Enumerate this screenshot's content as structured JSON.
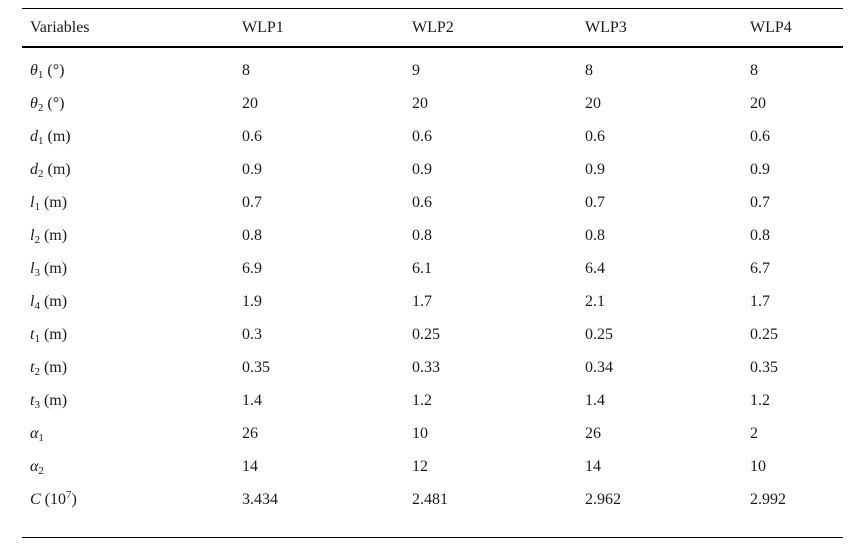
{
  "table": {
    "columns": [
      "Variables",
      "WLP1",
      "WLP2",
      "WLP3",
      "WLP4"
    ],
    "rows": [
      {
        "label": [
          {
            "t": "i",
            "v": "θ"
          },
          {
            "t": "sub",
            "v": "1"
          },
          {
            "t": "n",
            "v": " (°)"
          }
        ],
        "values": [
          "8",
          "9",
          "8",
          "8"
        ]
      },
      {
        "label": [
          {
            "t": "i",
            "v": "θ"
          },
          {
            "t": "sub",
            "v": "2"
          },
          {
            "t": "n",
            "v": " (°)"
          }
        ],
        "values": [
          "20",
          "20",
          "20",
          "20"
        ]
      },
      {
        "label": [
          {
            "t": "i",
            "v": "d"
          },
          {
            "t": "sub",
            "v": "1"
          },
          {
            "t": "n",
            "v": " (m)"
          }
        ],
        "values": [
          "0.6",
          "0.6",
          "0.6",
          "0.6"
        ]
      },
      {
        "label": [
          {
            "t": "i",
            "v": "d"
          },
          {
            "t": "sub",
            "v": "2"
          },
          {
            "t": "n",
            "v": " (m)"
          }
        ],
        "values": [
          "0.9",
          "0.9",
          "0.9",
          "0.9"
        ]
      },
      {
        "label": [
          {
            "t": "i",
            "v": "l"
          },
          {
            "t": "sub",
            "v": "1"
          },
          {
            "t": "n",
            "v": " (m)"
          }
        ],
        "values": [
          "0.7",
          "0.6",
          "0.7",
          "0.7"
        ]
      },
      {
        "label": [
          {
            "t": "i",
            "v": "l"
          },
          {
            "t": "sub",
            "v": "2"
          },
          {
            "t": "n",
            "v": " (m)"
          }
        ],
        "values": [
          "0.8",
          "0.8",
          "0.8",
          "0.8"
        ]
      },
      {
        "label": [
          {
            "t": "i",
            "v": "l"
          },
          {
            "t": "sub",
            "v": "3"
          },
          {
            "t": "n",
            "v": " (m)"
          }
        ],
        "values": [
          "6.9",
          "6.1",
          "6.4",
          "6.7"
        ]
      },
      {
        "label": [
          {
            "t": "i",
            "v": "l"
          },
          {
            "t": "sub",
            "v": "4"
          },
          {
            "t": "n",
            "v": " (m)"
          }
        ],
        "values": [
          "1.9",
          "1.7",
          "2.1",
          "1.7"
        ]
      },
      {
        "label": [
          {
            "t": "i",
            "v": "t"
          },
          {
            "t": "sub",
            "v": "1"
          },
          {
            "t": "n",
            "v": " (m)"
          }
        ],
        "values": [
          "0.3",
          "0.25",
          "0.25",
          "0.25"
        ]
      },
      {
        "label": [
          {
            "t": "i",
            "v": "t"
          },
          {
            "t": "sub",
            "v": "2"
          },
          {
            "t": "n",
            "v": " (m)"
          }
        ],
        "values": [
          "0.35",
          "0.33",
          "0.34",
          "0.35"
        ]
      },
      {
        "label": [
          {
            "t": "i",
            "v": "t"
          },
          {
            "t": "sub",
            "v": "3"
          },
          {
            "t": "n",
            "v": " (m)"
          }
        ],
        "values": [
          "1.4",
          "1.2",
          "1.4",
          "1.2"
        ]
      },
      {
        "label": [
          {
            "t": "i",
            "v": "α"
          },
          {
            "t": "sub",
            "v": "1"
          }
        ],
        "values": [
          "26",
          "10",
          "26",
          "2"
        ]
      },
      {
        "label": [
          {
            "t": "i",
            "v": "α"
          },
          {
            "t": "sub",
            "v": "2"
          }
        ],
        "values": [
          "14",
          "12",
          "14",
          "10"
        ]
      },
      {
        "label": [
          {
            "t": "i",
            "v": "C"
          },
          {
            "t": "n",
            "v": " (10"
          },
          {
            "t": "sup",
            "v": "7"
          },
          {
            "t": "n",
            "v": ")"
          }
        ],
        "values": [
          "3.434",
          "2.481",
          "2.962",
          "2.992"
        ]
      }
    ]
  }
}
